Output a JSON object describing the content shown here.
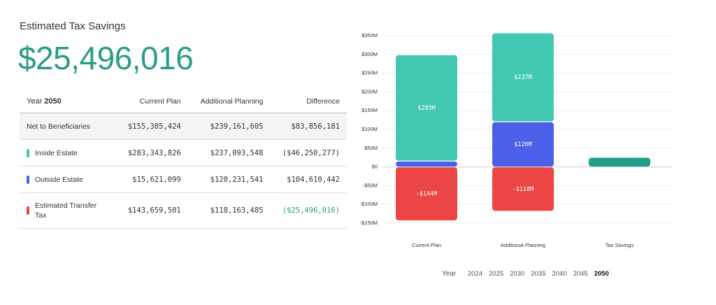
{
  "header": {
    "title": "Estimated Tax Savings",
    "amount": "$25,496,016"
  },
  "table": {
    "year_label": "Year",
    "year": "2050",
    "columns": [
      "Current Plan",
      "Additional Planning",
      "Difference"
    ],
    "rows": [
      {
        "label": "Net to Beneficiaries",
        "cells": [
          "$155,305,424",
          "$239,161,605",
          "$83,856,181"
        ]
      },
      {
        "label": "Inside Estate",
        "color": "#43c9b1",
        "cells": [
          "$283,343,826",
          "$237,093,548",
          "($46,250,277)"
        ]
      },
      {
        "label": "Outside Estate",
        "color": "#4c5fe8",
        "cells": [
          "$15,621,099",
          "$120,231,541",
          "$104,610,442"
        ]
      },
      {
        "label": "Estimated Transfer Tax",
        "color": "#ec4545",
        "cells": [
          "$143,659,501",
          "$118,163,485",
          "($25,496,016)"
        ]
      }
    ]
  },
  "chart_data": {
    "type": "stacked_bar",
    "categories": [
      "Current Plan",
      "Additional Planning",
      "Tax Savings"
    ],
    "series": [
      {
        "color": "#4c5fe8",
        "values": [
          15.621099,
          120.231541,
          null
        ],
        "value_labels": [
          null,
          "$120M",
          null
        ]
      },
      {
        "color": "#43c9b1",
        "values": [
          283.343826,
          237.093548,
          null
        ],
        "value_labels": [
          "$283M",
          "$237M",
          null
        ]
      },
      {
        "color": "#ec4545",
        "values": [
          -143.659501,
          -118.163485,
          null
        ],
        "value_labels": [
          "-$144M",
          "-$118M",
          null
        ]
      },
      {
        "color": "#1f9e89",
        "values": [
          null,
          null,
          25.496016
        ],
        "value_labels": [
          null,
          null,
          null
        ]
      }
    ],
    "ylim": [
      -150,
      350
    ],
    "yticks": [
      {
        "value": -150,
        "label": "-$150M"
      },
      {
        "value": -100,
        "label": "-$100M"
      },
      {
        "value": -50,
        "label": "-$50M"
      },
      {
        "value": 0,
        "label": "$0"
      },
      {
        "value": 50,
        "label": "$50M"
      },
      {
        "value": 100,
        "label": "$100M"
      },
      {
        "value": 150,
        "label": "$150M"
      },
      {
        "value": 200,
        "label": "$200M"
      },
      {
        "value": 250,
        "label": "$250M"
      },
      {
        "value": 300,
        "label": "$300M"
      },
      {
        "value": 350,
        "label": "$350M"
      }
    ],
    "grid": true
  },
  "year_selector": {
    "label": "Year",
    "options": [
      "2024",
      "2025",
      "2030",
      "2035",
      "2040",
      "2045",
      "2050"
    ]
  }
}
